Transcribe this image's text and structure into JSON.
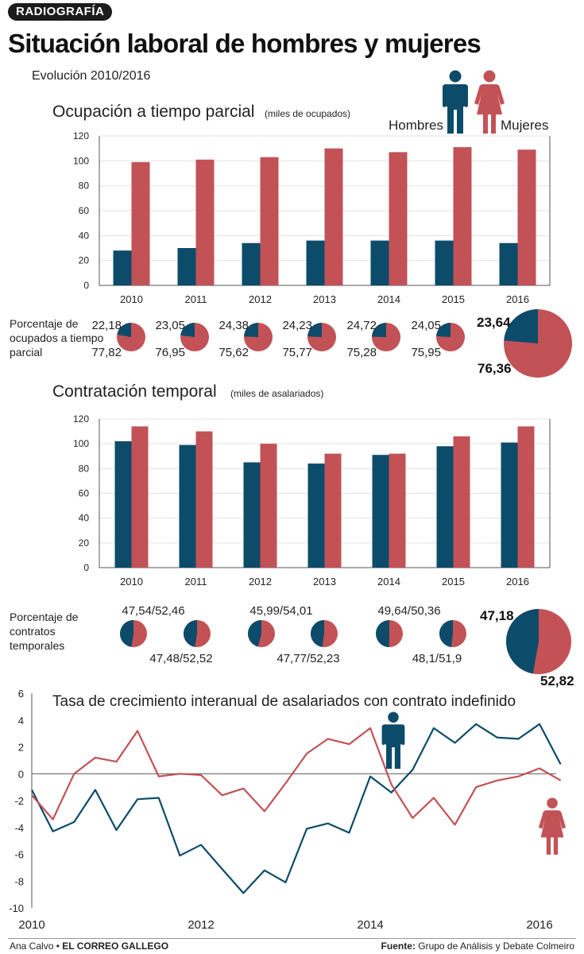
{
  "header": {
    "tag": "RADIOGRAFÍA",
    "title": "Situación laboral de hombres y mujeres",
    "subtitle": "Evolución 2010/2016"
  },
  "legend": {
    "men": "Hombres",
    "women": "Mujeres"
  },
  "colors": {
    "men": "#0d4b6a",
    "women": "#c25256",
    "axis": "#555555",
    "grid": "#e3e3e3"
  },
  "section1": {
    "title": "Ocupación a tiempo parcial",
    "unit": "(miles de ocupados)",
    "pie_label": "Porcentaje de ocupados a tiempo parcial"
  },
  "section2": {
    "title": "Contratación temporal",
    "unit": "(miles de asalariados)",
    "pie_label": "Porcentaje de contratos temporales"
  },
  "section3": {
    "title": "Tasa de crecimiento interanual de asalariados con contrato indefinido"
  },
  "footer": {
    "author": "Ana Calvo",
    "outlet": "EL CORREO GALLEGO",
    "source_label": "Fuente:",
    "source": "Grupo de Análisis y Debate Colmeiro"
  },
  "chart_data": [
    {
      "type": "bar",
      "title": "Ocupación a tiempo parcial",
      "categories": [
        "2010",
        "2011",
        "2012",
        "2013",
        "2014",
        "2015",
        "2016"
      ],
      "series": [
        {
          "name": "Hombres",
          "values": [
            28,
            30,
            34,
            36,
            36,
            36,
            34
          ]
        },
        {
          "name": "Mujeres",
          "values": [
            99,
            101,
            103,
            110,
            107,
            111,
            109
          ]
        }
      ],
      "ylim": [
        0,
        120
      ],
      "yticks": [
        0,
        20,
        40,
        60,
        80,
        100,
        120
      ]
    },
    {
      "type": "pie",
      "title": "Porcentaje de ocupados a tiempo parcial",
      "pies": [
        {
          "year": "2010",
          "men": 22.18,
          "women": 77.82,
          "men_label": "22,18",
          "women_label": "77,82"
        },
        {
          "year": "2011",
          "men": 23.05,
          "women": 76.95,
          "men_label": "23,05",
          "women_label": "76,95"
        },
        {
          "year": "2012",
          "men": 24.38,
          "women": 75.62,
          "men_label": "24,38",
          "women_label": "75,62"
        },
        {
          "year": "2013",
          "men": 24.23,
          "women": 75.77,
          "men_label": "24,23",
          "women_label": "75,77"
        },
        {
          "year": "2014",
          "men": 24.72,
          "women": 75.28,
          "men_label": "24,72",
          "women_label": "75,28"
        },
        {
          "year": "2015",
          "men": 24.05,
          "women": 75.95,
          "men_label": "24,05",
          "women_label": "75,95"
        },
        {
          "year": "2016",
          "men": 23.64,
          "women": 76.36,
          "men_label": "23,64",
          "women_label": "76,36"
        }
      ]
    },
    {
      "type": "bar",
      "title": "Contratación temporal",
      "categories": [
        "2010",
        "2011",
        "2012",
        "2013",
        "2014",
        "2015",
        "2016"
      ],
      "series": [
        {
          "name": "Hombres",
          "values": [
            102,
            99,
            85,
            84,
            91,
            98,
            101
          ]
        },
        {
          "name": "Mujeres",
          "values": [
            114,
            110,
            100,
            92,
            92,
            106,
            114
          ]
        }
      ],
      "ylim": [
        0,
        120
      ],
      "yticks": [
        0,
        20,
        40,
        60,
        80,
        100,
        120
      ]
    },
    {
      "type": "pie",
      "title": "Porcentaje de contratos temporales",
      "pies": [
        {
          "year": "2010",
          "men": 47.54,
          "women": 52.46,
          "label": "47,54/52,46"
        },
        {
          "year": "2011",
          "men": 47.48,
          "women": 52.52,
          "label": "47,48/52,52"
        },
        {
          "year": "2012",
          "men": 45.99,
          "women": 54.01,
          "label": "45,99/54,01"
        },
        {
          "year": "2013",
          "men": 47.77,
          "women": 52.23,
          "label": "47,77/52,23"
        },
        {
          "year": "2014",
          "men": 49.64,
          "women": 50.36,
          "label": "49,64/50,36"
        },
        {
          "year": "2015",
          "men": 48.1,
          "women": 51.9,
          "label": "48,1/51,9"
        },
        {
          "year": "2016",
          "men": 47.18,
          "women": 52.82,
          "men_label": "47,18",
          "women_label": "52,82"
        }
      ]
    },
    {
      "type": "line",
      "title": "Tasa de crecimiento interanual de asalariados con contrato indefinido",
      "x": [
        2010,
        2010.25,
        2010.5,
        2010.75,
        2011,
        2011.25,
        2011.5,
        2011.75,
        2012,
        2012.25,
        2012.5,
        2012.75,
        2013,
        2013.25,
        2013.5,
        2013.75,
        2014,
        2014.25,
        2014.5,
        2014.75,
        2015,
        2015.25,
        2015.5,
        2015.75,
        2016,
        2016.25
      ],
      "series": [
        {
          "name": "Hombres",
          "values": [
            -1.2,
            -4.3,
            -3.6,
            -1.2,
            -4.2,
            -1.9,
            -1.8,
            -6.1,
            -5.3,
            -7.1,
            -8.9,
            -7.2,
            -8.1,
            -4.1,
            -3.7,
            -4.4,
            -0.2,
            -1.4,
            0.3,
            3.4,
            2.3,
            3.7,
            2.7,
            2.6,
            3.7,
            0.7
          ]
        },
        {
          "name": "Mujeres",
          "values": [
            -1.6,
            -3.4,
            0,
            1.2,
            0.9,
            3.2,
            -0.2,
            0,
            -0.1,
            -1.6,
            -1.1,
            -2.8,
            -0.7,
            1.5,
            2.6,
            2.2,
            3.4,
            -0.8,
            -3.3,
            -1.8,
            -3.8,
            -1,
            -0.5,
            -0.2,
            0.4,
            -0.5
          ]
        }
      ],
      "xticks": [
        "2010",
        "2012",
        "2014",
        "2016"
      ],
      "ylim": [
        -10,
        6
      ],
      "yticks": [
        -10,
        -8,
        -6,
        -4,
        -2,
        0,
        2,
        4,
        6
      ]
    }
  ]
}
